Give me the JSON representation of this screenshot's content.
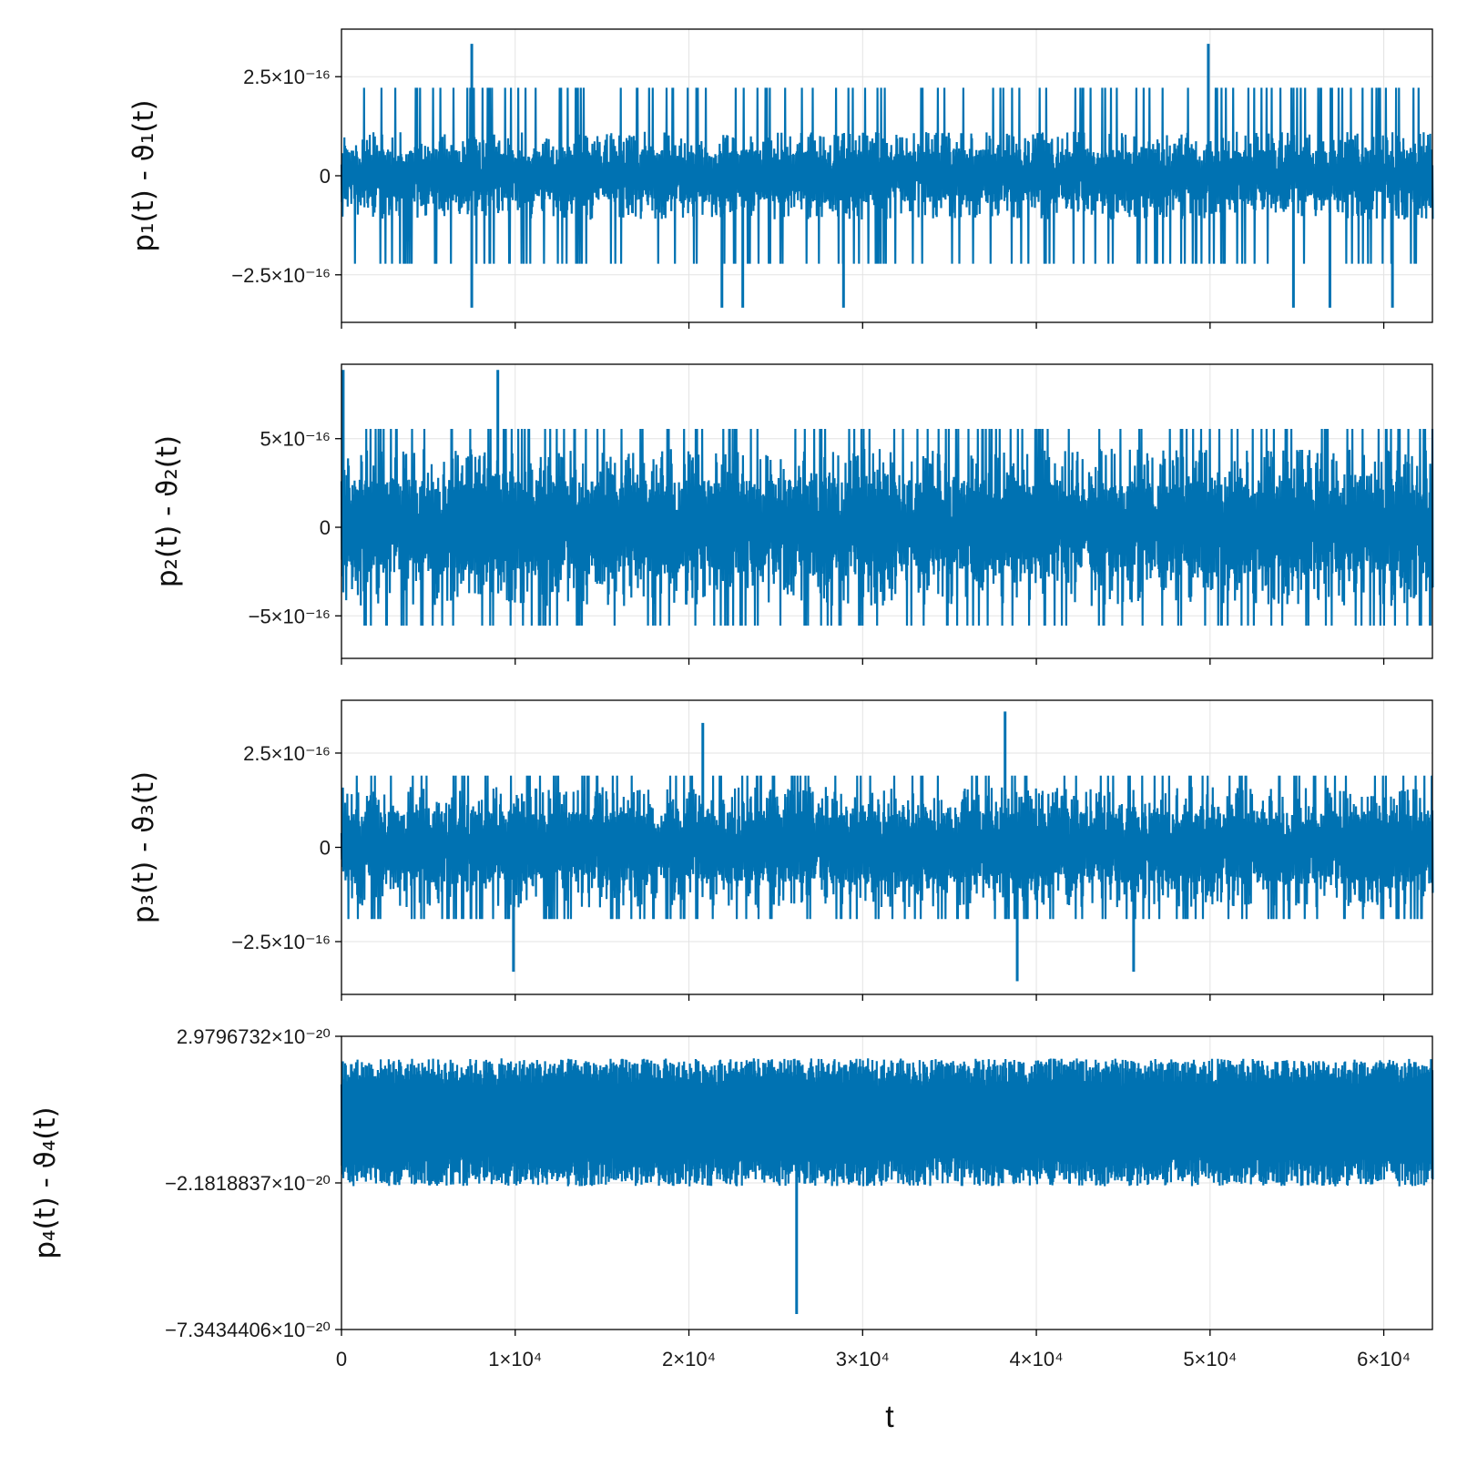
{
  "figure": {
    "xlabel": "t",
    "x_tick_labels": [
      "0",
      "1×10⁴",
      "2×10⁴",
      "3×10⁴",
      "4×10⁴",
      "5×10⁴",
      "6×10⁴"
    ]
  },
  "colors": {
    "series": "#0072b2",
    "grid": "#e3e3e3",
    "axis": "#000000"
  },
  "chart_data": [
    {
      "type": "line",
      "ylabel": "p₁(t) - ϑ₁(t)",
      "xlim": [
        0,
        62800
      ],
      "ylim": [
        -3.7e-16,
        3.7e-16
      ],
      "x_ticks": [
        0,
        10000,
        20000,
        30000,
        40000,
        50000,
        60000
      ],
      "y_ticks": [
        -2.5e-16,
        0,
        2.5e-16
      ],
      "y_tick_labels": [
        "−2.5×10⁻¹⁶",
        "0",
        "2.5×10⁻¹⁶"
      ],
      "grid": true,
      "noise": {
        "base_level": 1.11e-16,
        "step": 1.11e-16
      },
      "spikes": [
        {
          "x": 7500,
          "y": 3.33e-16
        },
        {
          "x": 49900,
          "y": 3.33e-16
        },
        {
          "x": 7500,
          "y": -3.33e-16
        },
        {
          "x": 21900,
          "y": -3.33e-16
        },
        {
          "x": 23100,
          "y": -3.33e-16
        },
        {
          "x": 28900,
          "y": -3.33e-16
        },
        {
          "x": 54800,
          "y": -3.33e-16
        },
        {
          "x": 56900,
          "y": -3.33e-16
        },
        {
          "x": 60500,
          "y": -3.33e-16
        }
      ]
    },
    {
      "type": "line",
      "ylabel": "p₂(t) - ϑ₂(t)",
      "xlim": [
        0,
        62800
      ],
      "ylim": [
        -7.4e-16,
        9.2e-16
      ],
      "x_ticks": [
        0,
        10000,
        20000,
        30000,
        40000,
        50000,
        60000
      ],
      "y_ticks": [
        -5e-16,
        0,
        5e-16
      ],
      "y_tick_labels": [
        "−5×10⁻¹⁶",
        "0",
        "5×10⁻¹⁶"
      ],
      "grid": true,
      "noise": {
        "base_level": 4.44e-16,
        "step": 1.11e-16
      },
      "spikes": [
        {
          "x": 100,
          "y": 8.88e-16
        },
        {
          "x": 9000,
          "y": 8.88e-16
        }
      ]
    },
    {
      "type": "line",
      "ylabel": "p₃(t) - ϑ₃(t)",
      "xlim": [
        0,
        62800
      ],
      "ylim": [
        -3.9e-16,
        3.9e-16
      ],
      "x_ticks": [
        0,
        10000,
        20000,
        30000,
        40000,
        50000,
        60000
      ],
      "y_ticks": [
        -2.5e-16,
        0,
        2.5e-16
      ],
      "y_tick_labels": [
        "−2.5×10⁻¹⁶",
        "0",
        "2.5×10⁻¹⁶"
      ],
      "grid": true,
      "noise": {
        "base_level": 1.6e-16,
        "step": 3e-17
      },
      "spikes": [
        {
          "x": 38200,
          "y": 3.6e-16
        },
        {
          "x": 20800,
          "y": 3.3e-16
        },
        {
          "x": 38900,
          "y": -3.55e-16
        },
        {
          "x": 9900,
          "y": -3.3e-16
        },
        {
          "x": 45600,
          "y": -3.3e-16
        }
      ]
    },
    {
      "type": "line",
      "ylabel": "p₄(t) - ϑ₄(t)",
      "xlim": [
        0,
        62800
      ],
      "ylim": [
        -7.3434406e-20,
        2.9796732e-20
      ],
      "x_ticks": [
        0,
        10000,
        20000,
        30000,
        40000,
        50000,
        60000
      ],
      "y_ticks": [
        -7.3434406e-20,
        -2.1818837e-20,
        2.9796732e-20
      ],
      "y_tick_labels": [
        "−7.3434406×10⁻²⁰",
        "−2.1818837×10⁻²⁰",
        "2.9796732×10⁻²⁰"
      ],
      "grid": true,
      "noise": {
        "upper": 2.2e-20,
        "lower": -2.3e-20,
        "period": 320
      },
      "spikes": [
        {
          "x": 26200,
          "y": -6.8e-20
        }
      ]
    }
  ]
}
